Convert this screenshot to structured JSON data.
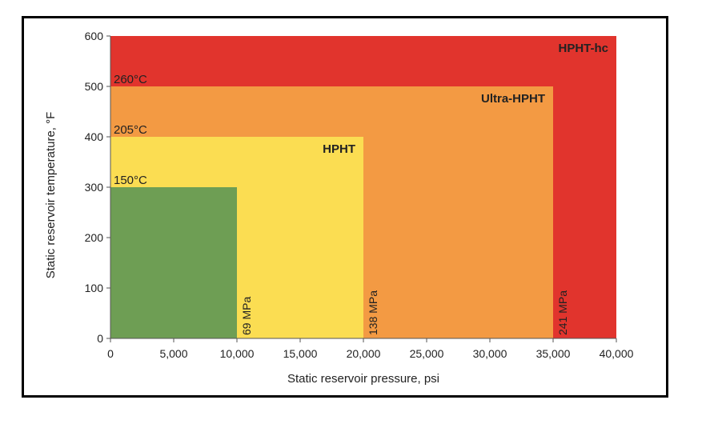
{
  "chart_data": {
    "type": "area",
    "xlabel": "Static reservoir pressure, psi",
    "ylabel": "Static reservoir temperature, °F",
    "xlim": [
      0,
      40000
    ],
    "ylim": [
      0,
      600
    ],
    "x_ticks": [
      {
        "value": 0,
        "label": "0"
      },
      {
        "value": 5000,
        "label": "5,000"
      },
      {
        "value": 10000,
        "label": "10,000"
      },
      {
        "value": 15000,
        "label": "15,000"
      },
      {
        "value": 20000,
        "label": "20,000"
      },
      {
        "value": 25000,
        "label": "25,000"
      },
      {
        "value": 30000,
        "label": "30,000"
      },
      {
        "value": 35000,
        "label": "35,000"
      },
      {
        "value": 40000,
        "label": "40,000"
      }
    ],
    "y_ticks": [
      {
        "value": 0,
        "label": "0"
      },
      {
        "value": 100,
        "label": "100"
      },
      {
        "value": 200,
        "label": "200"
      },
      {
        "value": 300,
        "label": "300"
      },
      {
        "value": 400,
        "label": "400"
      },
      {
        "value": 500,
        "label": "500"
      },
      {
        "value": 600,
        "label": "600"
      }
    ],
    "regions": [
      {
        "name": "HPHT-hc",
        "max_pressure": 40000,
        "max_temperature": 600,
        "color": "#e1342d"
      },
      {
        "name": "Ultra-HPHT",
        "max_pressure": 35000,
        "max_temperature": 500,
        "color": "#f39a43"
      },
      {
        "name": "HPHT",
        "max_pressure": 20000,
        "max_temperature": 400,
        "color": "#fbdd52"
      },
      {
        "name": "",
        "max_pressure": 10000,
        "max_temperature": 300,
        "color": "#6e9e54"
      }
    ],
    "temperature_annotations": [
      {
        "label": "260°C",
        "value": 500
      },
      {
        "label": "205°C",
        "value": 400
      },
      {
        "label": "150°C",
        "value": 300
      }
    ],
    "pressure_annotations": [
      {
        "label": "69 MPa",
        "value": 10000
      },
      {
        "label": "138 MPa",
        "value": 20000
      },
      {
        "label": "241 MPa",
        "value": 35000
      }
    ]
  }
}
